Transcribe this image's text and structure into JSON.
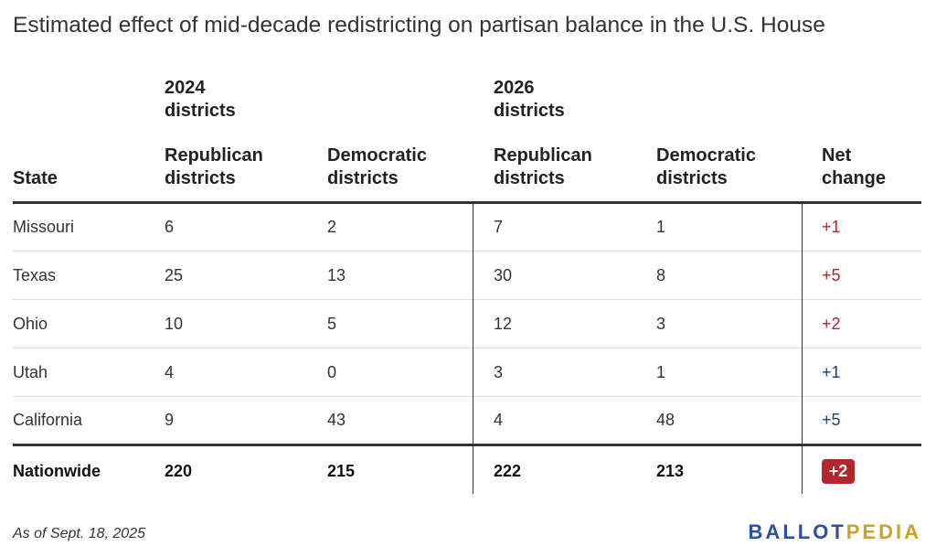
{
  "title": "Estimated effect of mid-decade redistricting on partisan balance in the U.S. House",
  "groups": {
    "g2024": [
      "2024",
      "districts"
    ],
    "g2026": [
      "2026",
      "districts"
    ]
  },
  "headers": {
    "state": "State",
    "rep2024": [
      "Republican",
      "districts"
    ],
    "dem2024": [
      "Democratic",
      "districts"
    ],
    "rep2026": [
      "Republican",
      "districts"
    ],
    "dem2026": [
      "Democratic",
      "districts"
    ],
    "net": [
      "Net",
      "change"
    ]
  },
  "chart_data": {
    "type": "table",
    "columns": [
      "State",
      "2024 Republican districts",
      "2024 Democratic districts",
      "2026 Republican districts",
      "2026 Democratic districts",
      "Net change"
    ],
    "rows": [
      {
        "state": "Missouri",
        "rep2024": "6",
        "dem2024": "2",
        "rep2026": "7",
        "dem2026": "1",
        "net": "+1",
        "net_party": "rep"
      },
      {
        "state": "Texas",
        "rep2024": "25",
        "dem2024": "13",
        "rep2026": "30",
        "dem2026": "8",
        "net": "+5",
        "net_party": "rep"
      },
      {
        "state": "Ohio",
        "rep2024": "10",
        "dem2024": "5",
        "rep2026": "12",
        "dem2026": "3",
        "net": "+2",
        "net_party": "rep"
      },
      {
        "state": "Utah",
        "rep2024": "4",
        "dem2024": "0",
        "rep2026": "3",
        "dem2026": "1",
        "net": "+1",
        "net_party": "dem"
      },
      {
        "state": "California",
        "rep2024": "9",
        "dem2024": "43",
        "rep2026": "4",
        "dem2026": "48",
        "net": "+5",
        "net_party": "dem"
      }
    ],
    "total": {
      "state": "Nationwide",
      "rep2024": "220",
      "dem2024": "215",
      "rep2026": "222",
      "dem2026": "213",
      "net": "+2",
      "net_party": "rep"
    }
  },
  "colors": {
    "republican": "#b3262b",
    "democratic": "#1f3f7a",
    "badge_bg": "#b3262b",
    "logo_primary": "#2c4f9e",
    "logo_accent": "#c9a227"
  },
  "footnote": "As of Sept. 18, 2025",
  "logo": {
    "part1": "BALLOT",
    "part2": "PEDIA"
  }
}
